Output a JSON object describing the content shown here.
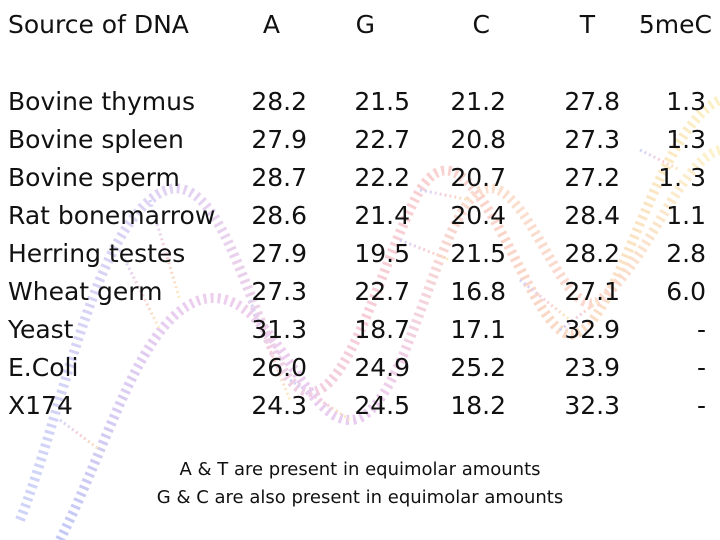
{
  "table": {
    "headers": [
      "Source of DNA",
      "A",
      "G",
      "C",
      "T",
      "5meC"
    ],
    "rows": [
      {
        "source": "Bovine thymus",
        "A": "28.2",
        "G": "21.5",
        "C": "21.2",
        "T": "27.8",
        "meC": "1.3"
      },
      {
        "source": "Bovine spleen",
        "A": "27.9",
        "G": "22.7",
        "C": "20.8",
        "T": "27.3",
        "meC": "1.3"
      },
      {
        "source": "Bovine sperm",
        "A": "28.7",
        "G": "22.2",
        "C": "20.7",
        "T": "27.2",
        "meC": "1. 3"
      },
      {
        "source": "Rat bonemarrow",
        "A": "28.6",
        "G": "21.4",
        "C": "20.4",
        "T": "28.4",
        "meC": "1.1"
      },
      {
        "source": "Herring testes",
        "A": "27.9",
        "G": "19.5",
        "C": "21.5",
        "T": "28.2",
        "meC": "2.8"
      },
      {
        "source": "Wheat germ",
        "A": "27.3",
        "G": "22.7",
        "C": "16.8",
        "T": "27.1",
        "meC": "6.0"
      },
      {
        "source": "Yeast",
        "A": "31.3",
        "G": "18.7",
        "C": "17.1",
        "T": "32.9",
        "meC": "-"
      },
      {
        "source": "E.Coli",
        "A": "26.0",
        "G": "24.9",
        "C": "25.2",
        "T": "23.9",
        "meC": "-"
      },
      {
        "source": "X174",
        "A": "24.3",
        "G": "24.5",
        "C": "18.2",
        "T": "32.3",
        "meC": "-"
      }
    ]
  },
  "footnotes": [
    "A & T are present in equimolar amounts",
    "G & C are also present in equimolar amounts"
  ],
  "background": {
    "icon": "dna-double-helix-watermark",
    "colors": [
      "#f3d24a",
      "#ef8a55",
      "#e86a8a",
      "#b07ad8",
      "#6c7ee8"
    ]
  }
}
